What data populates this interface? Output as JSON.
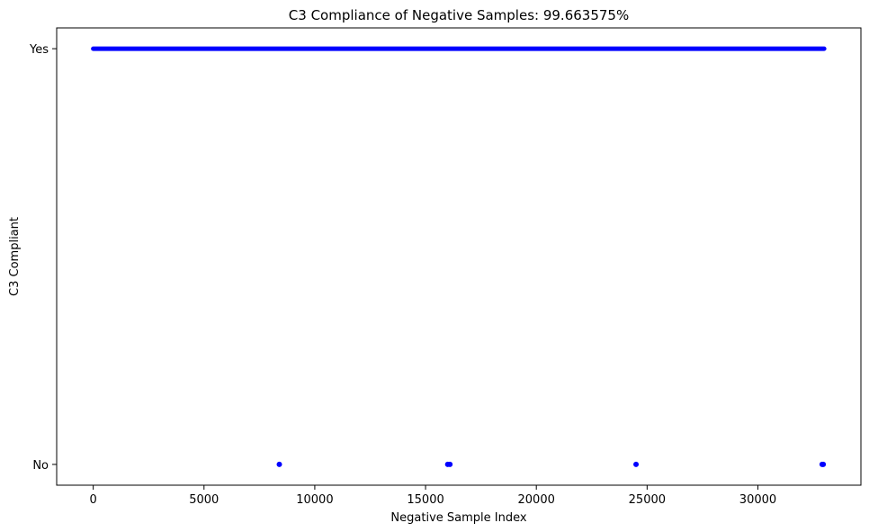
{
  "chart_data": {
    "type": "scatter",
    "title": "C3 Compliance of Negative Samples: 99.663575%",
    "xlabel": "Negative Sample Index",
    "ylabel": "C3 Compliant",
    "xlim": [
      -1650,
      34650
    ],
    "ylim": [
      -0.05,
      1.05
    ],
    "x_ticks": [
      0,
      5000,
      10000,
      15000,
      20000,
      25000,
      30000
    ],
    "y_ticks": [
      {
        "value": 0,
        "label": "No"
      },
      {
        "value": 1,
        "label": "Yes"
      }
    ],
    "grid": false,
    "legend": "none",
    "marker_color": "#0000ff",
    "series": [
      {
        "compliant_range": [
          0,
          32990
        ],
        "non_compliant_x": [
          8400,
          16000,
          16100,
          24500,
          32900,
          32950
        ]
      }
    ]
  }
}
